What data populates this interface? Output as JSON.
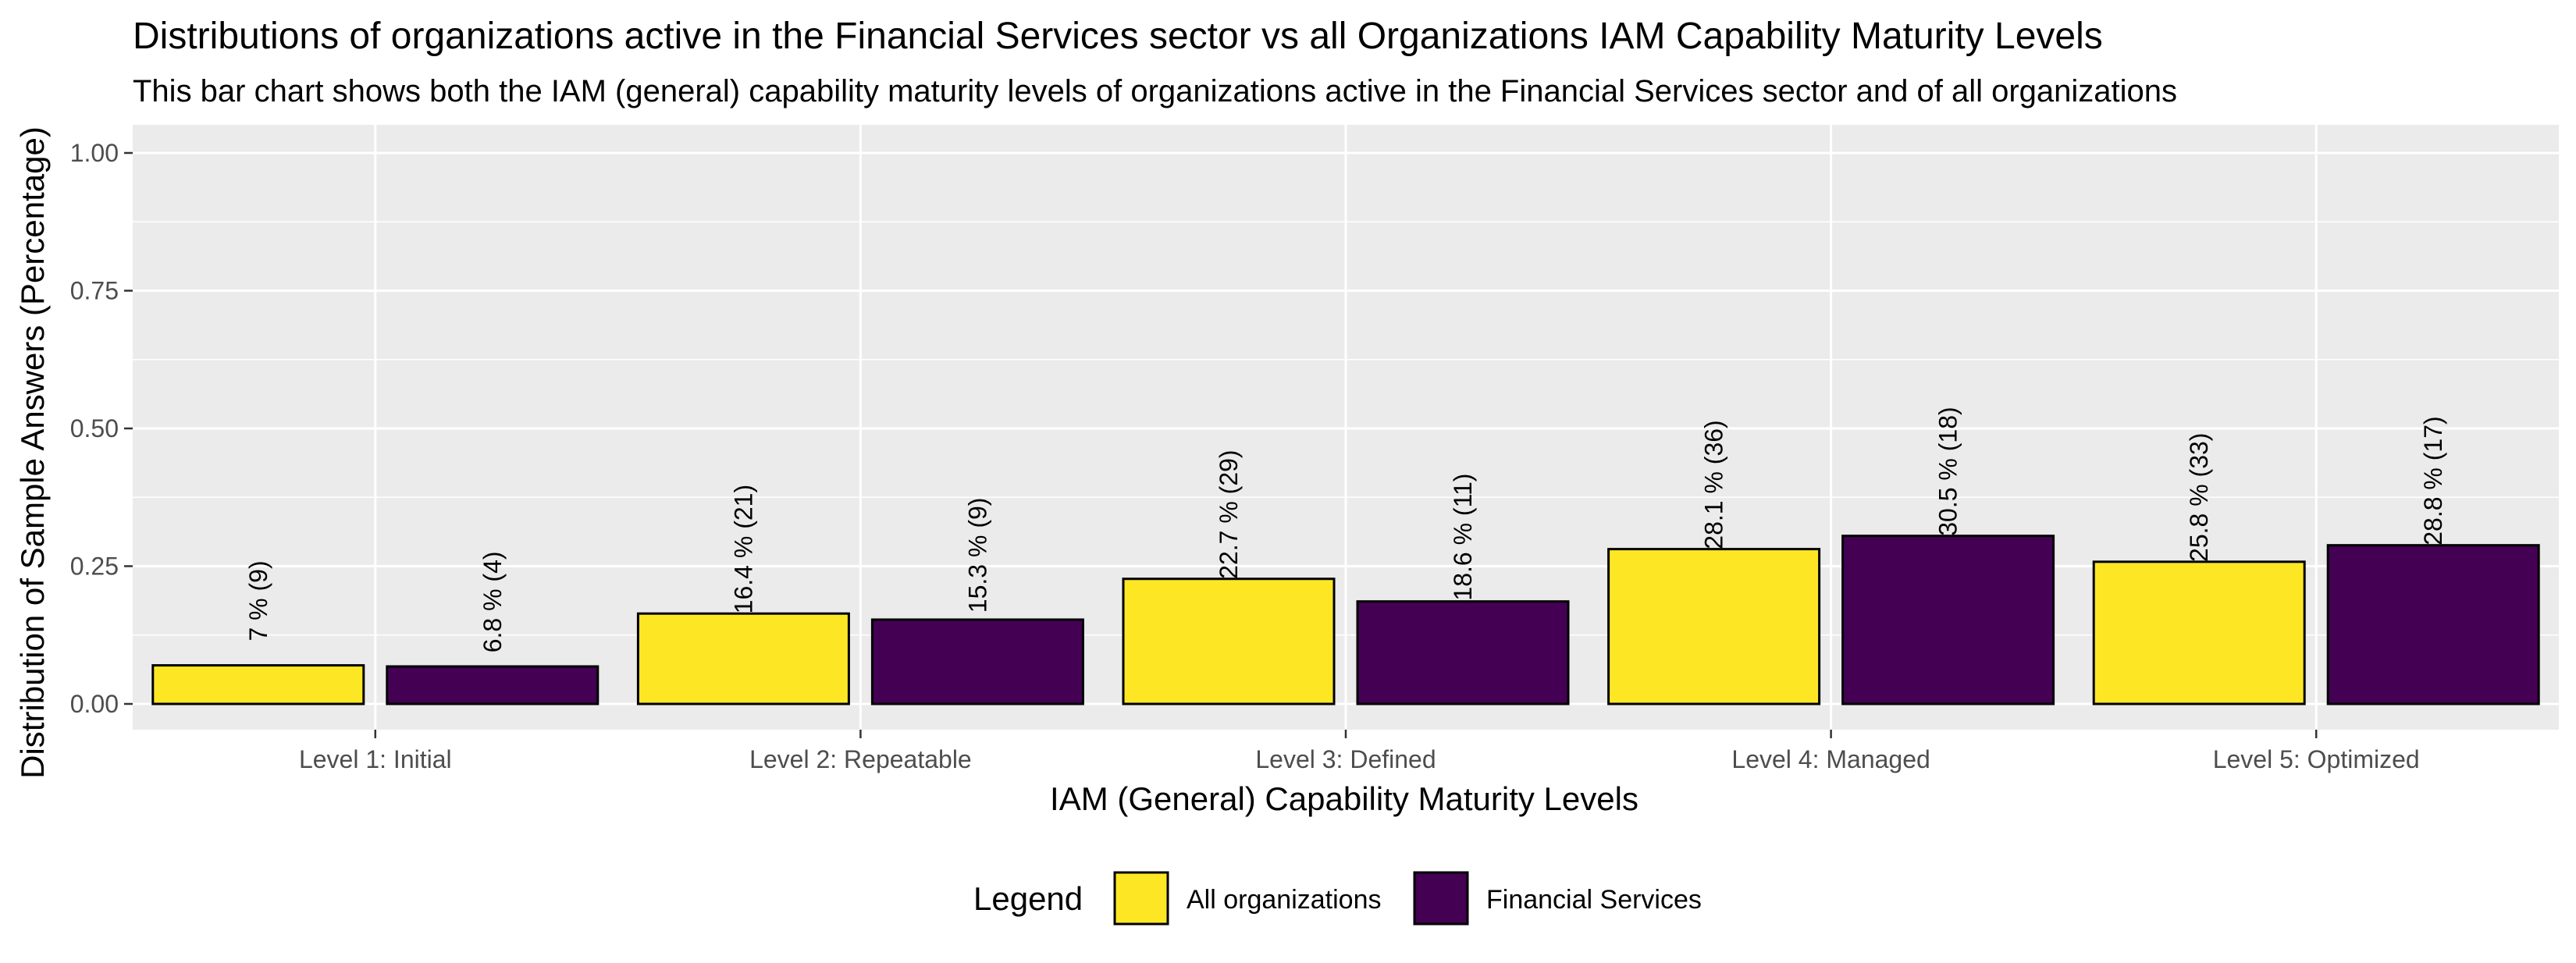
{
  "chart_data": {
    "type": "bar",
    "title": "Distributions of organizations active in the Financial Services sector vs all Organizations IAM Capability Maturity Levels",
    "subtitle": "This bar chart shows both the IAM (general) capability maturity levels of organizations active in the Financial Services sector and of all organizations",
    "xlabel": "IAM (General) Capability Maturity Levels",
    "ylabel": "Distribution of Sample Answers (Percentage)",
    "ylim": [
      0,
      1
    ],
    "yticks": [
      0.0,
      0.25,
      0.5,
      0.75,
      1.0
    ],
    "ytick_labels": [
      "0.00",
      "0.25",
      "0.50",
      "0.75",
      "1.00"
    ],
    "grid": true,
    "legend_position": "bottom",
    "legend_title": "Legend",
    "categories": [
      "Level 1: Initial",
      "Level 2: Repeatable",
      "Level 3: Defined",
      "Level 4: Managed",
      "Level 5: Optimized"
    ],
    "series": [
      {
        "name": "All organizations",
        "color": "#FDE725",
        "values": [
          0.07,
          0.164,
          0.227,
          0.281,
          0.258
        ],
        "labels": [
          "7 % (9)",
          "16.4 % (21)",
          "22.7 % (29)",
          "28.1 % (36)",
          "25.8 % (33)"
        ]
      },
      {
        "name": "Financial Services",
        "color": "#440154",
        "values": [
          0.068,
          0.153,
          0.186,
          0.305,
          0.288
        ],
        "labels": [
          "6.8 % (4)",
          "15.3 % (9)",
          "18.6 % (11)",
          "30.5 % (18)",
          "28.8 % (17)"
        ]
      }
    ]
  }
}
